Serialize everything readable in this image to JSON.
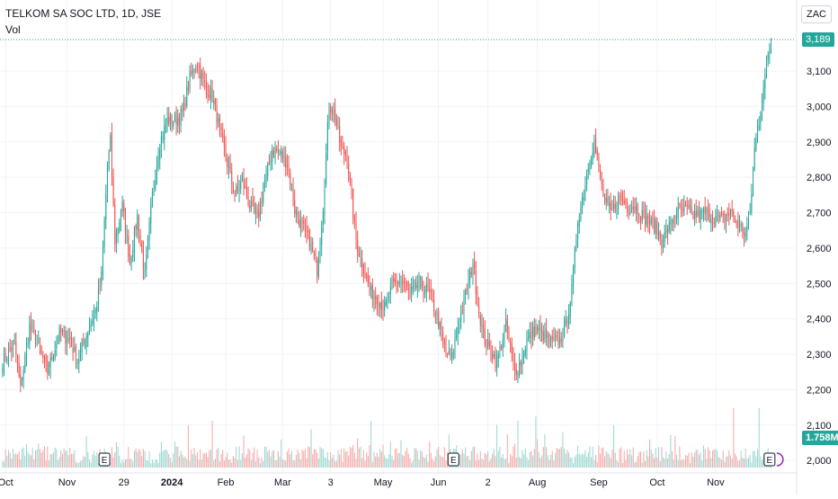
{
  "header": {
    "title": "TELKOM SA SOC LTD, 1D, JSE",
    "volume_label": "Vol",
    "currency": "ZAC"
  },
  "price_label": "3,189",
  "volume_label_value": "1.758M",
  "colors": {
    "up": "#26a69a",
    "down": "#ef5350",
    "grid": "#f0f3fa",
    "axis_text": "#131722"
  },
  "chart_data": {
    "type": "candlestick",
    "title": "TELKOM SA SOC LTD, 1D, JSE",
    "y_ticks": [
      2000,
      2100,
      2200,
      2300,
      2400,
      2500,
      2600,
      2700,
      2800,
      2900,
      3000,
      3100
    ],
    "y_tick_labels": [
      "2,000",
      "2,100",
      "2,200",
      "2,300",
      "2,400",
      "2,500",
      "2,600",
      "2,700",
      "2,800",
      "2,900",
      "3,000",
      "3,100"
    ],
    "ylim": [
      1980,
      3255
    ],
    "x_labels": [
      "Oct",
      "Nov",
      "29",
      "2024",
      "Feb",
      "Mar",
      "3",
      "May",
      "Jun",
      "2",
      "Aug",
      "Sep",
      "Oct",
      "Nov"
    ],
    "x_label_sessions": [
      2,
      43,
      81,
      113,
      149,
      187,
      219,
      254,
      291,
      324,
      357,
      398,
      437,
      476
    ],
    "total_sessions": 530,
    "last_price": 3189,
    "last_volume": "1.758M",
    "earnings_sessions": [
      68,
      301,
      512
    ],
    "anchor_closes": [
      [
        0,
        2280
      ],
      [
        8,
        2330
      ],
      [
        12,
        2200
      ],
      [
        18,
        2380
      ],
      [
        25,
        2310
      ],
      [
        30,
        2250
      ],
      [
        38,
        2360
      ],
      [
        45,
        2340
      ],
      [
        50,
        2280
      ],
      [
        58,
        2380
      ],
      [
        62,
        2420
      ],
      [
        66,
        2520
      ],
      [
        70,
        2830
      ],
      [
        72,
        2900
      ],
      [
        75,
        2620
      ],
      [
        80,
        2720
      ],
      [
        85,
        2560
      ],
      [
        90,
        2690
      ],
      [
        95,
        2520
      ],
      [
        100,
        2750
      ],
      [
        105,
        2900
      ],
      [
        110,
        2960
      ],
      [
        115,
        2960
      ],
      [
        120,
        2980
      ],
      [
        125,
        3080
      ],
      [
        130,
        3120
      ],
      [
        135,
        3060
      ],
      [
        140,
        3030
      ],
      [
        145,
        2930
      ],
      [
        150,
        2840
      ],
      [
        155,
        2750
      ],
      [
        160,
        2790
      ],
      [
        165,
        2720
      ],
      [
        170,
        2680
      ],
      [
        175,
        2780
      ],
      [
        180,
        2880
      ],
      [
        185,
        2870
      ],
      [
        190,
        2840
      ],
      [
        195,
        2710
      ],
      [
        200,
        2660
      ],
      [
        205,
        2620
      ],
      [
        210,
        2540
      ],
      [
        214,
        2720
      ],
      [
        218,
        3010
      ],
      [
        222,
        2970
      ],
      [
        226,
        2880
      ],
      [
        230,
        2860
      ],
      [
        236,
        2620
      ],
      [
        240,
        2560
      ],
      [
        245,
        2480
      ],
      [
        250,
        2460
      ],
      [
        255,
        2430
      ],
      [
        260,
        2490
      ],
      [
        266,
        2510
      ],
      [
        272,
        2470
      ],
      [
        278,
        2500
      ],
      [
        284,
        2480
      ],
      [
        290,
        2410
      ],
      [
        296,
        2300
      ],
      [
        300,
        2290
      ],
      [
        304,
        2380
      ],
      [
        308,
        2450
      ],
      [
        314,
        2560
      ],
      [
        318,
        2420
      ],
      [
        322,
        2340
      ],
      [
        326,
        2310
      ],
      [
        330,
        2280
      ],
      [
        336,
        2380
      ],
      [
        342,
        2250
      ],
      [
        346,
        2280
      ],
      [
        350,
        2340
      ],
      [
        356,
        2370
      ],
      [
        362,
        2350
      ],
      [
        366,
        2330
      ],
      [
        372,
        2340
      ],
      [
        376,
        2380
      ],
      [
        380,
        2480
      ],
      [
        384,
        2680
      ],
      [
        388,
        2760
      ],
      [
        392,
        2860
      ],
      [
        395,
        2900
      ],
      [
        398,
        2820
      ],
      [
        402,
        2730
      ],
      [
        406,
        2700
      ],
      [
        412,
        2740
      ],
      [
        418,
        2720
      ],
      [
        424,
        2710
      ],
      [
        430,
        2680
      ],
      [
        436,
        2660
      ],
      [
        440,
        2620
      ],
      [
        444,
        2650
      ],
      [
        450,
        2700
      ],
      [
        456,
        2710
      ],
      [
        462,
        2690
      ],
      [
        468,
        2700
      ],
      [
        474,
        2690
      ],
      [
        480,
        2680
      ],
      [
        486,
        2700
      ],
      [
        492,
        2660
      ],
      [
        496,
        2640
      ],
      [
        499,
        2700
      ],
      [
        502,
        2880
      ],
      [
        505,
        2960
      ],
      [
        508,
        3060
      ],
      [
        511,
        3140
      ],
      [
        513,
        3189
      ]
    ],
    "volume_ylim": [
      0,
      55
    ],
    "volume_unit": "relative",
    "volume_spikes": [
      [
        76,
        12
      ],
      [
        124,
        20
      ],
      [
        140,
        22
      ],
      [
        206,
        18
      ],
      [
        246,
        22
      ],
      [
        330,
        20
      ],
      [
        344,
        22
      ],
      [
        356,
        24
      ],
      [
        408,
        20
      ],
      [
        488,
        28
      ],
      [
        505,
        28
      ]
    ]
  }
}
